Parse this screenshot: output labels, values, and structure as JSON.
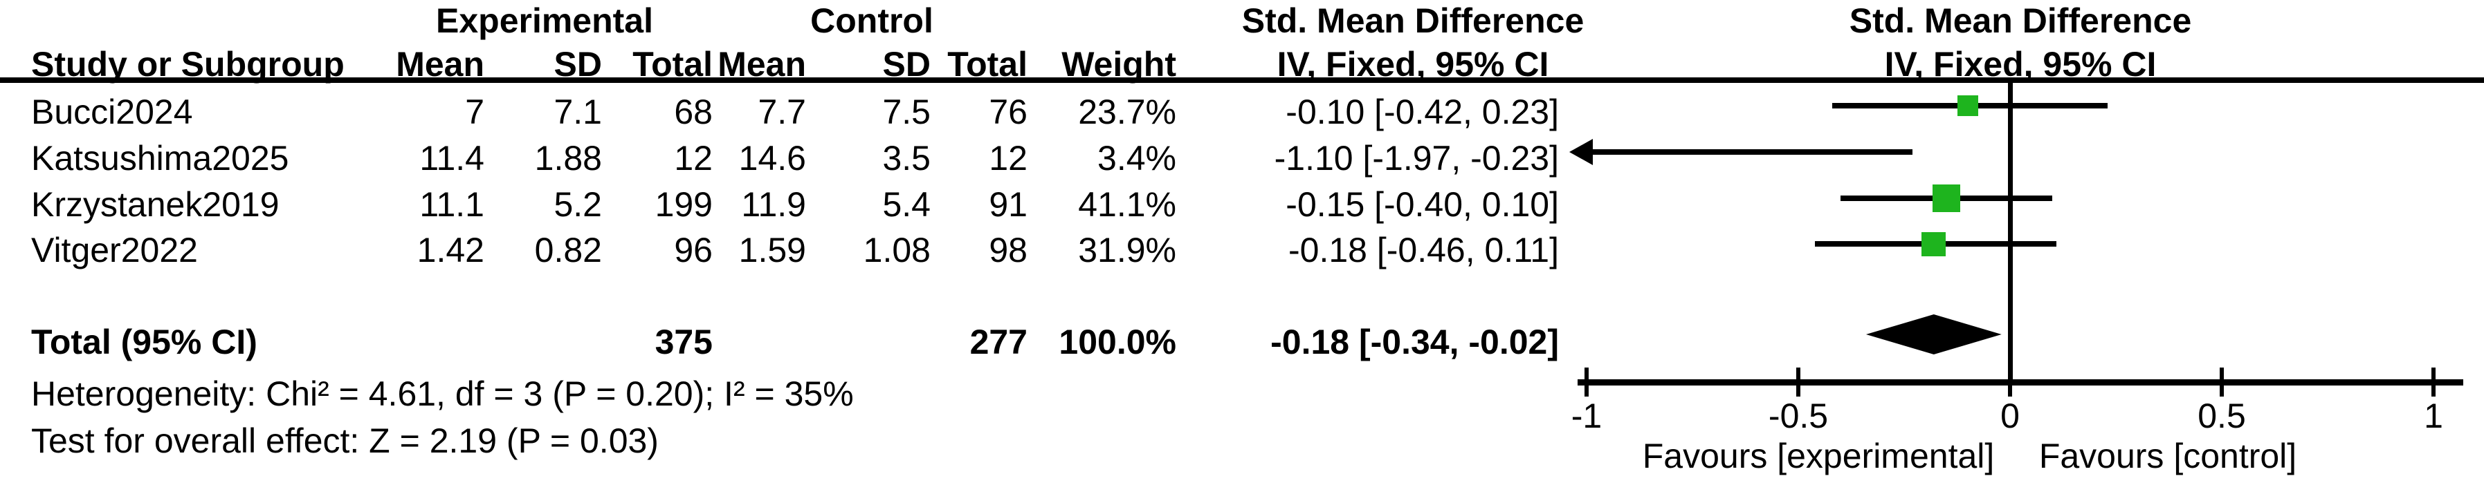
{
  "headers": {
    "experimental": "Experimental",
    "control": "Control",
    "smd_table_line1": "Std. Mean Difference",
    "smd_table_line2": "IV, Fixed, 95% CI",
    "smd_plot_line1": "Std. Mean Difference",
    "smd_plot_line2": "IV, Fixed, 95% CI",
    "study": "Study or Subgroup",
    "mean_e": "Mean",
    "sd_e": "SD",
    "total_e": "Total",
    "mean_c": "Mean",
    "sd_c": "SD",
    "total_c": "Total",
    "weight": "Weight"
  },
  "studies": [
    {
      "name": "Bucci2024",
      "mean_e": "7",
      "sd_e": "7.1",
      "n_e": "68",
      "mean_c": "7.7",
      "sd_c": "7.5",
      "n_c": "76",
      "weight": "23.7%",
      "weight_pct": 23.7,
      "ci_label": "-0.10 [-0.42, 0.23]",
      "est": -0.1,
      "lo": -0.42,
      "hi": 0.23
    },
    {
      "name": "Katsushima2025",
      "mean_e": "11.4",
      "sd_e": "1.88",
      "n_e": "12",
      "mean_c": "14.6",
      "sd_c": "3.5",
      "n_c": "12",
      "weight": "3.4%",
      "weight_pct": 3.4,
      "ci_label": "-1.10 [-1.97, -0.23]",
      "est": -1.1,
      "lo": -1.97,
      "hi": -0.23
    },
    {
      "name": "Krzystanek2019",
      "mean_e": "11.1",
      "sd_e": "5.2",
      "n_e": "199",
      "mean_c": "11.9",
      "sd_c": "5.4",
      "n_c": "91",
      "weight": "41.1%",
      "weight_pct": 41.1,
      "ci_label": "-0.15 [-0.40, 0.10]",
      "est": -0.15,
      "lo": -0.4,
      "hi": 0.1
    },
    {
      "name": "Vitger2022",
      "mean_e": "1.42",
      "sd_e": "0.82",
      "n_e": "96",
      "mean_c": "1.59",
      "sd_c": "1.08",
      "n_c": "98",
      "weight": "31.9%",
      "weight_pct": 31.9,
      "ci_label": "-0.18 [-0.46, 0.11]",
      "est": -0.18,
      "lo": -0.46,
      "hi": 0.11
    }
  ],
  "total": {
    "label": "Total (95% CI)",
    "n_e": "375",
    "n_c": "277",
    "weight": "100.0%",
    "ci_label": "-0.18 [-0.34, -0.02]",
    "est": -0.18,
    "lo": -0.34,
    "hi": -0.02
  },
  "footnotes": {
    "heterogeneity": "Heterogeneity: Chi² = 4.61, df = 3 (P = 0.20); I² = 35%",
    "overall_effect": "Test for overall effect: Z = 2.19 (P = 0.03)"
  },
  "axis": {
    "values": [
      -1,
      -0.5,
      0,
      0.5,
      1
    ],
    "tick_labels": [
      "-1",
      "-0.5",
      "0",
      "0.5",
      "1"
    ],
    "favours_left": "Favours [experimental]",
    "favours_right": "Favours [control]"
  },
  "colors": {
    "marker_green": "#1EB41E",
    "line_black": "#000000"
  },
  "chart_data": {
    "type": "forest",
    "title": "Std. Mean Difference",
    "subtitle": "IV, Fixed, 95% CI",
    "x_axis": {
      "min": -1,
      "max": 1,
      "ticks": [
        -1,
        -0.5,
        0,
        0.5,
        1
      ],
      "zero_line": 0
    },
    "favours": [
      "Favours [experimental]",
      "Favours [control]"
    ],
    "studies": [
      {
        "name": "Bucci2024",
        "est": -0.1,
        "lo": -0.42,
        "hi": 0.23,
        "weight_pct": 23.7
      },
      {
        "name": "Katsushima2025",
        "est": -1.1,
        "lo": -1.97,
        "hi": -0.23,
        "weight_pct": 3.4,
        "clipped_left": true
      },
      {
        "name": "Krzystanek2019",
        "est": -0.15,
        "lo": -0.4,
        "hi": 0.1,
        "weight_pct": 41.1
      },
      {
        "name": "Vitger2022",
        "est": -0.18,
        "lo": -0.46,
        "hi": 0.11,
        "weight_pct": 31.9
      }
    ],
    "total": {
      "name": "Total (95% CI)",
      "est": -0.18,
      "lo": -0.34,
      "hi": -0.02,
      "weight_pct": 100.0
    },
    "heterogeneity": {
      "chi2": 4.61,
      "df": 3,
      "p": 0.2,
      "i2_pct": 35
    },
    "overall_effect": {
      "z": 2.19,
      "p": 0.03
    }
  }
}
